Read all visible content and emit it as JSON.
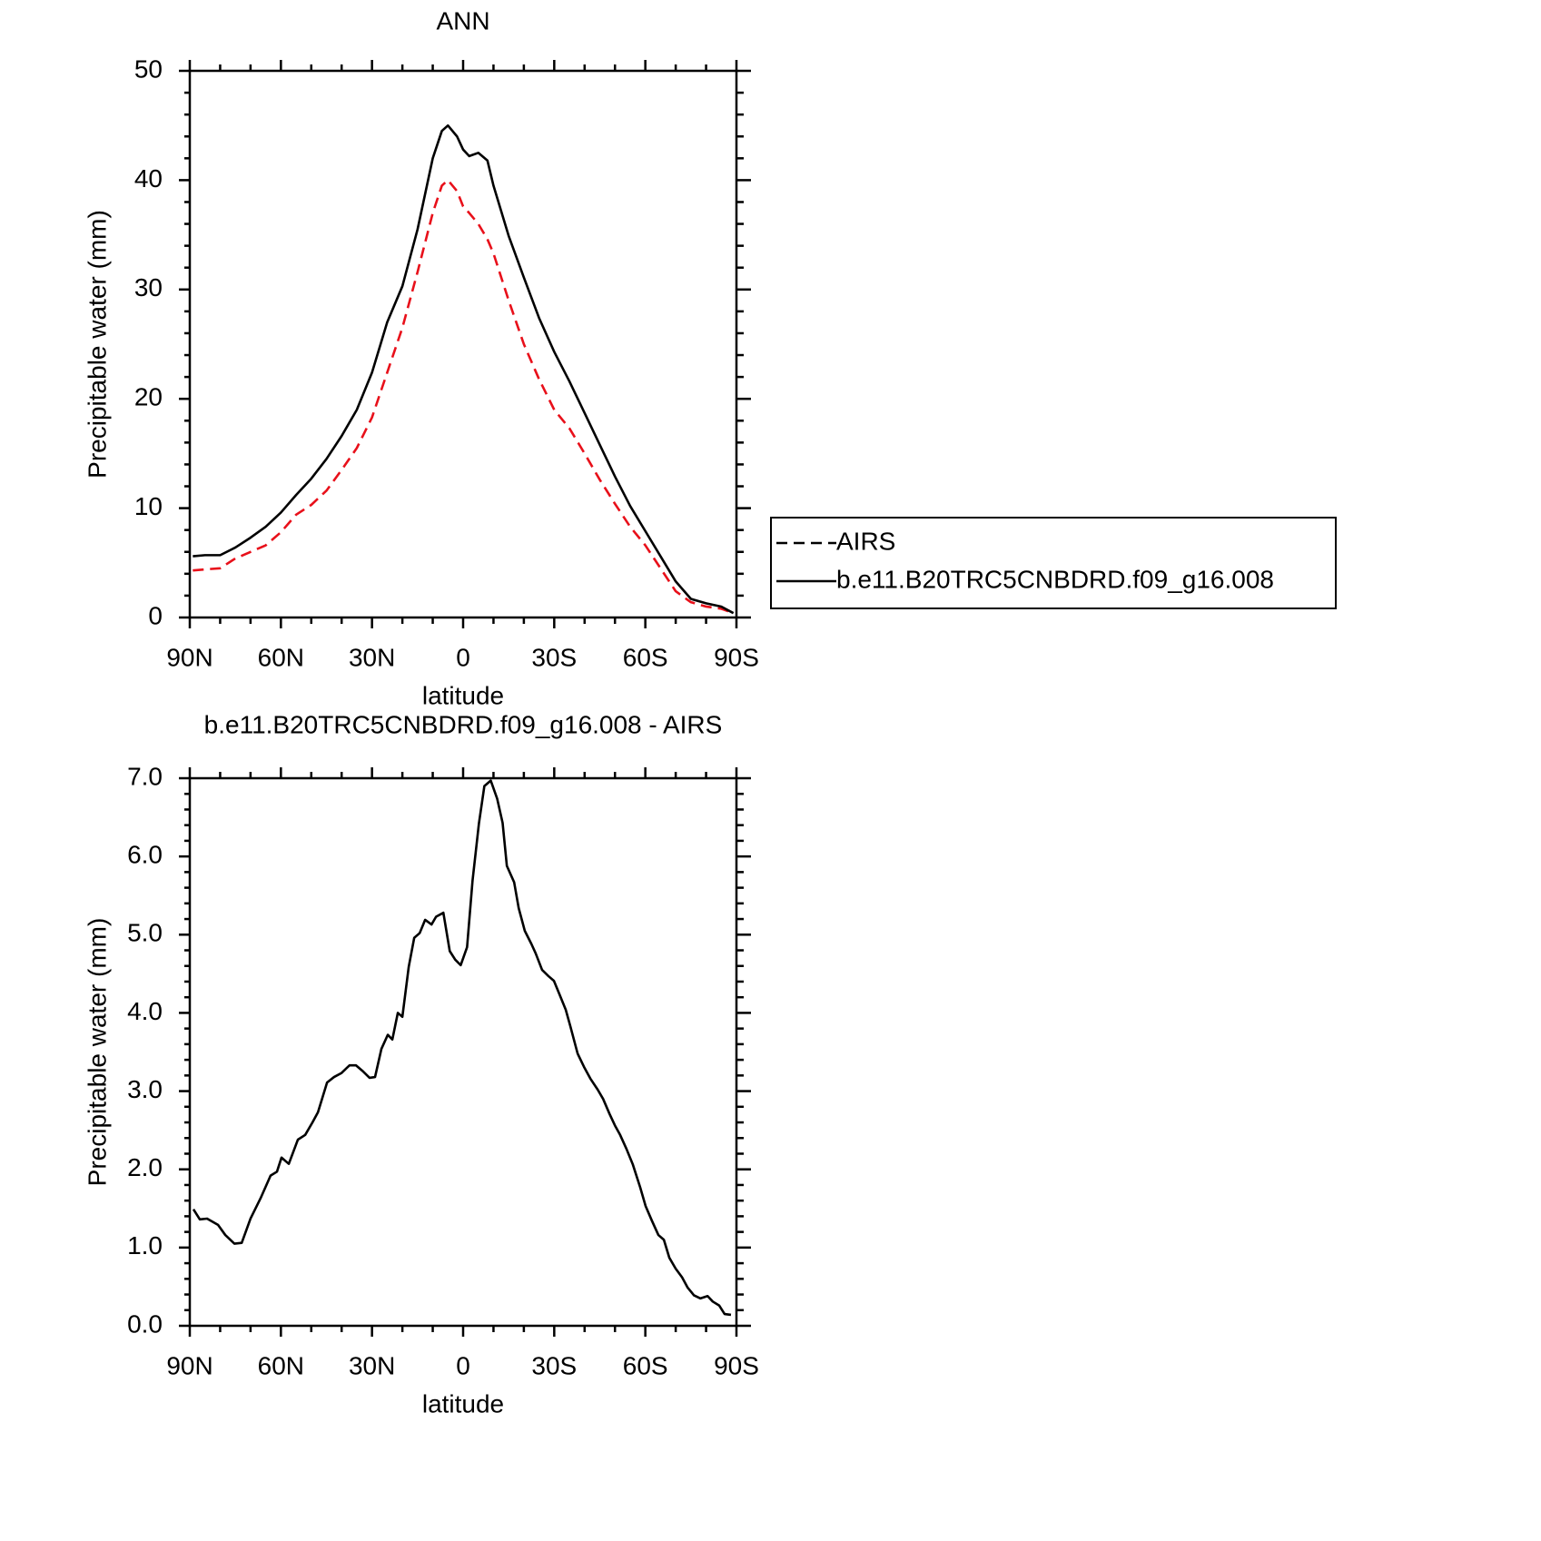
{
  "chart_data": [
    {
      "type": "line",
      "title": "ANN",
      "xlabel": "latitude",
      "ylabel": "Precipitable water (mm)",
      "x": [
        89,
        85,
        80,
        75,
        70,
        65,
        60,
        55,
        50,
        45,
        40,
        35,
        30,
        25,
        20,
        15,
        10,
        7,
        5,
        2,
        0,
        -2,
        -5,
        -8,
        -10,
        -15,
        -20,
        -25,
        -30,
        -35,
        -40,
        -45,
        -50,
        -55,
        -60,
        -65,
        -70,
        -75,
        -80,
        -85,
        -89
      ],
      "series": [
        {
          "name": "AIRS",
          "color": "#e8101a",
          "linestyle": "dashed",
          "values": [
            4.3,
            4.4,
            4.5,
            5.4,
            6.0,
            6.6,
            7.8,
            9.4,
            10.3,
            11.6,
            13.5,
            15.5,
            18.3,
            22.4,
            26.5,
            31.6,
            37.0,
            39.5,
            40.0,
            39.0,
            37.6,
            37.0,
            36.0,
            34.6,
            33.3,
            29.0,
            25.0,
            21.8,
            19.0,
            17.3,
            15.0,
            12.6,
            10.4,
            8.3,
            6.6,
            4.5,
            2.4,
            1.4,
            1.0,
            0.8,
            0.4
          ]
        },
        {
          "name": "b.e11.B20TRC5CNBDRD.f09_g16.008",
          "color": "#000000",
          "linestyle": "solid",
          "values": [
            5.6,
            5.7,
            5.7,
            6.4,
            7.3,
            8.3,
            9.6,
            11.2,
            12.7,
            14.5,
            16.6,
            19.0,
            22.4,
            27.0,
            30.3,
            35.5,
            42.0,
            44.5,
            45.0,
            44.0,
            42.8,
            42.2,
            42.5,
            41.8,
            39.5,
            34.9,
            31.1,
            27.4,
            24.3,
            21.6,
            18.7,
            15.8,
            12.9,
            10.2,
            7.9,
            5.6,
            3.3,
            1.7,
            1.3,
            1.0,
            0.4
          ]
        }
      ],
      "xlim": [
        90,
        -90
      ],
      "xticks": [
        {
          "value": 90,
          "label": "90N"
        },
        {
          "value": 60,
          "label": "60N"
        },
        {
          "value": 30,
          "label": "30N"
        },
        0,
        {
          "value": -30,
          "label": "30S"
        },
        {
          "value": -60,
          "label": "60S"
        },
        {
          "value": -90,
          "label": "90S"
        }
      ],
      "xticks_minor": [
        80,
        70,
        50,
        40,
        20,
        10,
        -10,
        -20,
        -40,
        -50,
        -70,
        -80
      ],
      "ylim": [
        0,
        50
      ],
      "yticks": [
        0,
        10,
        20,
        30,
        40,
        50
      ],
      "yticks_minor": [
        2,
        4,
        6,
        8,
        12,
        14,
        16,
        18,
        22,
        24,
        26,
        28,
        32,
        34,
        36,
        38,
        42,
        44,
        46,
        48
      ],
      "legend": "outside-right"
    },
    {
      "type": "line",
      "title": "b.e11.B20TRC5CNBDRD.f09_g16.008 - AIRS",
      "xlabel": "latitude",
      "ylabel": "Precipitable water (mm)",
      "x": [
        88.8,
        86.7,
        84.3,
        80.7,
        78.3,
        75.3,
        72.9,
        70.0,
        66.7,
        63.4,
        61.3,
        59.8,
        57.4,
        54.4,
        52.0,
        49.6,
        47.8,
        44.8,
        42.5,
        40.1,
        37.4,
        35.3,
        32.9,
        30.8,
        29.0,
        26.9,
        24.8,
        23.3,
        21.5,
        20.0,
        17.9,
        16.1,
        14.3,
        12.5,
        10.4,
        8.9,
        6.5,
        4.4,
        2.6,
        0.8,
        -1.3,
        -3.1,
        -5.2,
        -7.0,
        -9.1,
        -11.2,
        -13.0,
        -14.4,
        -16.8,
        -18.3,
        -20.3,
        -22.5,
        -23.9,
        -26.0,
        -28.1,
        -29.9,
        -31.7,
        -33.8,
        -35.3,
        -37.7,
        -39.8,
        -41.9,
        -44.3,
        -46.1,
        -48.2,
        -50.0,
        -51.7,
        -53.8,
        -55.9,
        -58.3,
        -60.1,
        -62.2,
        -64.3,
        -66.1,
        -67.9,
        -70.0,
        -72.1,
        -73.9,
        -76.0,
        -78.1,
        -80.5,
        -82.2,
        -84.3,
        -86.1,
        -88.2
      ],
      "values": [
        1.49,
        1.36,
        1.37,
        1.29,
        1.16,
        1.05,
        1.06,
        1.37,
        1.63,
        1.92,
        1.97,
        2.15,
        2.07,
        2.38,
        2.44,
        2.6,
        2.73,
        3.11,
        3.18,
        3.23,
        3.33,
        3.33,
        3.25,
        3.17,
        3.18,
        3.54,
        3.72,
        3.66,
        4.0,
        3.95,
        4.59,
        4.96,
        5.02,
        5.19,
        5.13,
        5.23,
        5.28,
        4.79,
        4.68,
        4.61,
        4.84,
        5.69,
        6.42,
        6.9,
        6.97,
        6.74,
        6.43,
        5.88,
        5.67,
        5.34,
        5.05,
        4.88,
        4.76,
        4.55,
        4.47,
        4.41,
        4.24,
        4.04,
        3.83,
        3.48,
        3.31,
        3.16,
        3.02,
        2.9,
        2.71,
        2.56,
        2.44,
        2.26,
        2.06,
        1.77,
        1.53,
        1.34,
        1.16,
        1.1,
        0.87,
        0.73,
        0.62,
        0.49,
        0.39,
        0.35,
        0.38,
        0.31,
        0.26,
        0.15,
        0.14
      ],
      "color": "#000000",
      "xlim": [
        90,
        -90
      ],
      "xticks": [
        {
          "value": 90,
          "label": "90N"
        },
        {
          "value": 60,
          "label": "60N"
        },
        {
          "value": 30,
          "label": "30N"
        },
        0,
        {
          "value": -30,
          "label": "30S"
        },
        {
          "value": -60,
          "label": "60S"
        },
        {
          "value": -90,
          "label": "90S"
        }
      ],
      "xticks_minor": [
        80,
        70,
        50,
        40,
        20,
        10,
        -10,
        -20,
        -40,
        -50,
        -70,
        -80
      ],
      "ylim": [
        0,
        7
      ],
      "yticks": [
        {
          "value": 0,
          "label": "0.0"
        },
        {
          "value": 1,
          "label": "1.0"
        },
        {
          "value": 2,
          "label": "2.0"
        },
        {
          "value": 3,
          "label": "3.0"
        },
        {
          "value": 4,
          "label": "4.0"
        },
        {
          "value": 5,
          "label": "5.0"
        },
        {
          "value": 6,
          "label": "6.0"
        },
        {
          "value": 7,
          "label": "7.0"
        }
      ],
      "yticks_minor": [
        0.2,
        0.4,
        0.6,
        0.8,
        1.2,
        1.4,
        1.6,
        1.8,
        2.2,
        2.4,
        2.6,
        2.8,
        3.2,
        3.4,
        3.6,
        3.8,
        4.2,
        4.4,
        4.6,
        4.8,
        5.2,
        5.4,
        5.6,
        5.8,
        6.2,
        6.4,
        6.6,
        6.8
      ]
    }
  ]
}
